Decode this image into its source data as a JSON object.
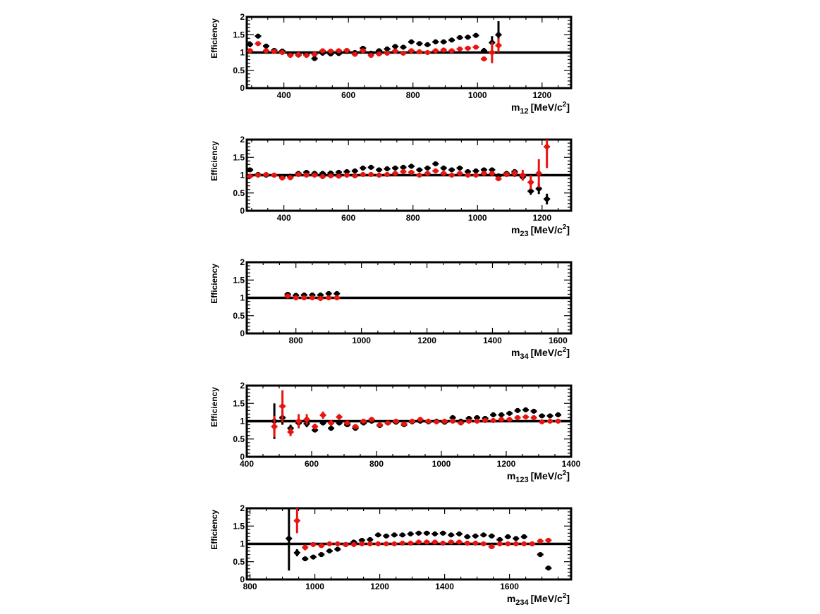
{
  "colors": {
    "series_black": "#000000",
    "series_red": "#e8140f",
    "frame": "#000000"
  },
  "chart_data": [
    {
      "type": "scatter",
      "ylabel": "Efficiency",
      "xlabel": {
        "main": "m",
        "sub": "12",
        "unit_pre": "[MeV/c",
        "sup": "2",
        "unit_post": "]"
      },
      "xlim": [
        285,
        1290
      ],
      "ylim": [
        0,
        2
      ],
      "xticks": [
        400,
        600,
        800,
        1000,
        1200
      ],
      "yticks": [
        "0",
        "0.5",
        "1",
        "1.5",
        "2"
      ],
      "reference_line": 1,
      "series": [
        {
          "color": "black",
          "x": [
            295,
            320,
            345,
            370,
            395,
            420,
            445,
            470,
            495,
            520,
            545,
            570,
            595,
            620,
            645,
            670,
            695,
            720,
            745,
            770,
            795,
            820,
            845,
            870,
            895,
            920,
            945,
            970,
            995,
            1020,
            1045,
            1065
          ],
          "y": [
            1.23,
            1.46,
            1.18,
            1.06,
            1.04,
            0.95,
            0.93,
            0.95,
            0.83,
            0.98,
            0.96,
            0.97,
            1.03,
            1.0,
            1.12,
            0.98,
            1.05,
            1.1,
            1.17,
            1.15,
            1.3,
            1.25,
            1.22,
            1.3,
            1.3,
            1.35,
            1.42,
            1.43,
            1.48,
            1.05,
            1.28,
            1.5
          ],
          "err": [
            0.08,
            0.06,
            0.05,
            0.04,
            0.04,
            0.04,
            0.04,
            0.04,
            0.05,
            0.04,
            0.04,
            0.04,
            0.04,
            0.04,
            0.04,
            0.04,
            0.04,
            0.04,
            0.04,
            0.04,
            0.04,
            0.04,
            0.04,
            0.04,
            0.04,
            0.04,
            0.04,
            0.04,
            0.06,
            0.08,
            0.18,
            0.38
          ]
        },
        {
          "color": "red",
          "x": [
            295,
            320,
            345,
            370,
            395,
            420,
            445,
            470,
            495,
            520,
            545,
            570,
            595,
            620,
            645,
            670,
            695,
            720,
            745,
            770,
            795,
            820,
            845,
            870,
            895,
            920,
            945,
            970,
            995,
            1020,
            1045,
            1065
          ],
          "y": [
            1.05,
            1.25,
            1.05,
            1.03,
            1.0,
            0.92,
            0.94,
            0.92,
            0.95,
            1.05,
            1.04,
            1.05,
            1.06,
            0.95,
            1.05,
            0.92,
            0.96,
            0.98,
            1.04,
            0.98,
            1.05,
            1.02,
            1.0,
            1.05,
            1.07,
            1.05,
            1.1,
            1.12,
            1.15,
            0.82,
            1.0,
            1.2
          ],
          "err": [
            0.07,
            0.06,
            0.05,
            0.04,
            0.04,
            0.04,
            0.04,
            0.04,
            0.04,
            0.04,
            0.04,
            0.04,
            0.04,
            0.04,
            0.04,
            0.04,
            0.04,
            0.04,
            0.04,
            0.04,
            0.04,
            0.04,
            0.04,
            0.04,
            0.04,
            0.04,
            0.04,
            0.04,
            0.05,
            0.05,
            0.3,
            0.2
          ]
        }
      ]
    },
    {
      "type": "scatter",
      "ylabel": "Efficiency",
      "xlabel": {
        "main": "m",
        "sub": "23",
        "unit_pre": "[MeV/c",
        "sup": "2",
        "unit_post": "]"
      },
      "xlim": [
        285,
        1290
      ],
      "ylim": [
        0,
        2
      ],
      "xticks": [
        400,
        600,
        800,
        1000,
        1200
      ],
      "yticks": [
        "0",
        "0.5",
        "1",
        "1.5",
        "2"
      ],
      "reference_line": 1,
      "series": [
        {
          "color": "black",
          "x": [
            295,
            320,
            345,
            370,
            395,
            420,
            445,
            470,
            495,
            520,
            545,
            570,
            595,
            620,
            645,
            670,
            695,
            720,
            745,
            770,
            795,
            820,
            845,
            870,
            895,
            920,
            945,
            970,
            995,
            1020,
            1045,
            1065,
            1090,
            1115,
            1140,
            1165,
            1190,
            1215
          ],
          "y": [
            1.15,
            1.02,
            1.0,
            1.0,
            0.95,
            0.97,
            1.05,
            1.08,
            1.05,
            1.05,
            1.06,
            1.08,
            1.1,
            1.12,
            1.2,
            1.22,
            1.15,
            1.18,
            1.2,
            1.22,
            1.25,
            1.15,
            1.2,
            1.32,
            1.2,
            1.15,
            1.2,
            1.1,
            1.12,
            1.15,
            1.15,
            0.98,
            1.05,
            1.1,
            0.95,
            0.55,
            0.62,
            0.33
          ],
          "err": [
            0.05,
            0.04,
            0.04,
            0.04,
            0.04,
            0.04,
            0.04,
            0.04,
            0.04,
            0.04,
            0.04,
            0.04,
            0.04,
            0.04,
            0.04,
            0.04,
            0.04,
            0.04,
            0.04,
            0.04,
            0.04,
            0.04,
            0.04,
            0.04,
            0.04,
            0.04,
            0.04,
            0.04,
            0.04,
            0.04,
            0.05,
            0.06,
            0.06,
            0.07,
            0.1,
            0.1,
            0.15,
            0.15
          ]
        },
        {
          "color": "red",
          "x": [
            295,
            320,
            345,
            370,
            395,
            420,
            445,
            470,
            495,
            520,
            545,
            570,
            595,
            620,
            645,
            670,
            695,
            720,
            745,
            770,
            795,
            820,
            845,
            870,
            895,
            920,
            945,
            970,
            995,
            1020,
            1045,
            1065,
            1090,
            1115,
            1140,
            1165,
            1190,
            1215
          ],
          "y": [
            0.97,
            1.0,
            1.02,
            1.0,
            0.92,
            0.93,
            1.02,
            1.0,
            1.0,
            0.96,
            0.98,
            0.97,
            1.0,
            0.98,
            1.02,
            1.02,
            1.0,
            1.02,
            1.05,
            1.1,
            1.08,
            1.0,
            1.05,
            1.12,
            1.05,
            1.0,
            1.05,
            1.0,
            1.0,
            1.05,
            1.05,
            0.9,
            1.02,
            1.05,
            1.0,
            0.8,
            1.05,
            1.8
          ],
          "err": [
            0.05,
            0.04,
            0.04,
            0.04,
            0.04,
            0.04,
            0.04,
            0.04,
            0.04,
            0.04,
            0.04,
            0.04,
            0.04,
            0.04,
            0.04,
            0.04,
            0.04,
            0.04,
            0.04,
            0.04,
            0.04,
            0.04,
            0.04,
            0.04,
            0.04,
            0.04,
            0.04,
            0.04,
            0.04,
            0.04,
            0.05,
            0.06,
            0.07,
            0.1,
            0.15,
            0.2,
            0.4,
            0.6
          ]
        }
      ]
    },
    {
      "type": "scatter",
      "ylabel": "Efficiency",
      "xlabel": {
        "main": "m",
        "sub": "34",
        "unit_pre": "[MeV/c",
        "sup": "2",
        "unit_post": "]"
      },
      "xlim": [
        650,
        1640
      ],
      "ylim": [
        0,
        2
      ],
      "xticks": [
        800,
        1000,
        1200,
        1400,
        1600
      ],
      "yticks": [
        "0",
        "0.5",
        "1",
        "1.5",
        "2"
      ],
      "reference_line": 1,
      "series": [
        {
          "color": "black",
          "x": [
            775,
            800,
            825,
            850,
            875,
            900,
            925
          ],
          "y": [
            1.1,
            1.07,
            1.08,
            1.08,
            1.08,
            1.12,
            1.12
          ],
          "err": [
            0.03,
            0.03,
            0.03,
            0.03,
            0.03,
            0.03,
            0.03
          ]
        },
        {
          "color": "red",
          "x": [
            775,
            800,
            825,
            850,
            875,
            900,
            925
          ],
          "y": [
            1.05,
            1.0,
            1.0,
            1.0,
            0.98,
            1.0,
            1.0
          ],
          "err": [
            0.03,
            0.03,
            0.03,
            0.03,
            0.03,
            0.03,
            0.03
          ]
        }
      ]
    },
    {
      "type": "scatter",
      "ylabel": "Efficiency",
      "xlabel": {
        "main": "m",
        "sub": "123",
        "unit_pre": "[MeV/c",
        "sup": "2",
        "unit_post": "]"
      },
      "xlim": [
        400,
        1400
      ],
      "ylim": [
        0,
        2
      ],
      "xticks": [
        400,
        600,
        800,
        1000,
        1200,
        1400
      ],
      "yticks": [
        "0",
        "0.5",
        "1",
        "1.5",
        "2"
      ],
      "reference_line": 1,
      "series": [
        {
          "color": "black",
          "x": [
            485,
            510,
            535,
            560,
            585,
            610,
            635,
            660,
            685,
            710,
            735,
            760,
            785,
            810,
            835,
            860,
            885,
            910,
            935,
            960,
            985,
            1010,
            1035,
            1060,
            1085,
            1110,
            1135,
            1160,
            1185,
            1210,
            1235,
            1260,
            1285,
            1310,
            1335,
            1360
          ],
          "y": [
            1.0,
            1.1,
            0.8,
            0.95,
            0.93,
            0.75,
            0.95,
            0.8,
            0.95,
            0.9,
            0.8,
            0.95,
            1.0,
            0.88,
            0.95,
            0.97,
            0.9,
            0.98,
            1.0,
            0.98,
            1.0,
            0.97,
            1.1,
            1.0,
            1.08,
            1.1,
            1.08,
            1.18,
            1.18,
            1.22,
            1.3,
            1.32,
            1.28,
            1.15,
            1.15,
            1.18
          ],
          "err": [
            0.5,
            0.2,
            0.1,
            0.1,
            0.1,
            0.06,
            0.06,
            0.06,
            0.05,
            0.05,
            0.05,
            0.04,
            0.04,
            0.04,
            0.04,
            0.04,
            0.04,
            0.04,
            0.04,
            0.04,
            0.04,
            0.04,
            0.04,
            0.04,
            0.04,
            0.04,
            0.04,
            0.04,
            0.04,
            0.04,
            0.04,
            0.04,
            0.04,
            0.04,
            0.04,
            0.04
          ]
        },
        {
          "color": "red",
          "x": [
            485,
            510,
            535,
            560,
            585,
            610,
            635,
            660,
            685,
            710,
            735,
            760,
            785,
            810,
            835,
            860,
            885,
            910,
            935,
            960,
            985,
            1010,
            1035,
            1060,
            1085,
            1110,
            1135,
            1160,
            1185,
            1210,
            1235,
            1260,
            1285,
            1310,
            1335,
            1360
          ],
          "y": [
            0.85,
            1.42,
            0.7,
            1.0,
            1.05,
            0.85,
            1.17,
            0.95,
            1.12,
            0.95,
            0.85,
            1.0,
            1.05,
            0.9,
            0.95,
            1.0,
            0.92,
            1.0,
            1.05,
            1.0,
            0.98,
            1.0,
            1.0,
            0.95,
            1.0,
            1.0,
            1.02,
            1.02,
            1.05,
            1.05,
            1.1,
            1.12,
            1.1,
            0.98,
            1.0,
            1.0
          ],
          "err": [
            0.3,
            0.45,
            0.12,
            0.2,
            0.15,
            0.08,
            0.1,
            0.08,
            0.08,
            0.06,
            0.05,
            0.05,
            0.05,
            0.04,
            0.04,
            0.04,
            0.04,
            0.04,
            0.04,
            0.04,
            0.04,
            0.04,
            0.04,
            0.04,
            0.04,
            0.04,
            0.04,
            0.04,
            0.04,
            0.04,
            0.04,
            0.04,
            0.04,
            0.04,
            0.04,
            0.04
          ]
        }
      ]
    },
    {
      "type": "scatter",
      "ylabel": "Efficiency",
      "xlabel": {
        "main": "m",
        "sub": "234",
        "unit_pre": "[MeV/c",
        "sup": "2",
        "unit_post": "]"
      },
      "xlim": [
        790,
        1790
      ],
      "ylim": [
        0,
        2
      ],
      "xticks": [
        800,
        1000,
        1200,
        1400,
        1600
      ],
      "yticks": [
        "0",
        "0.5",
        "1",
        "1.5",
        "2"
      ],
      "reference_line": 1,
      "series": [
        {
          "color": "black",
          "x": [
            920,
            945,
            970,
            995,
            1020,
            1045,
            1070,
            1095,
            1120,
            1145,
            1170,
            1195,
            1220,
            1245,
            1270,
            1295,
            1320,
            1345,
            1370,
            1395,
            1420,
            1445,
            1470,
            1495,
            1520,
            1545,
            1570,
            1595,
            1620,
            1645,
            1670,
            1695,
            1720
          ],
          "y": [
            1.15,
            0.75,
            0.58,
            0.63,
            0.7,
            0.8,
            0.85,
            0.98,
            1.05,
            1.1,
            1.12,
            1.25,
            1.22,
            1.25,
            1.25,
            1.28,
            1.3,
            1.3,
            1.28,
            1.3,
            1.25,
            1.28,
            1.2,
            1.22,
            1.25,
            1.22,
            1.12,
            1.2,
            1.15,
            1.2,
            1.0,
            0.7,
            0.32
          ],
          "err": [
            0.9,
            0.1,
            0.05,
            0.04,
            0.04,
            0.04,
            0.04,
            0.04,
            0.04,
            0.04,
            0.04,
            0.04,
            0.04,
            0.04,
            0.04,
            0.04,
            0.04,
            0.04,
            0.04,
            0.04,
            0.04,
            0.04,
            0.04,
            0.04,
            0.04,
            0.04,
            0.04,
            0.04,
            0.04,
            0.04,
            0.04,
            0.04,
            0.04
          ]
        },
        {
          "color": "red",
          "x": [
            945,
            970,
            995,
            1020,
            1045,
            1070,
            1095,
            1120,
            1145,
            1170,
            1195,
            1220,
            1245,
            1270,
            1295,
            1320,
            1345,
            1370,
            1395,
            1420,
            1445,
            1470,
            1495,
            1520,
            1545,
            1570,
            1595,
            1620,
            1645,
            1670,
            1695,
            1720
          ],
          "y": [
            1.65,
            0.9,
            0.98,
            0.95,
            1.0,
            1.0,
            0.98,
            0.98,
            1.0,
            1.0,
            1.0,
            1.0,
            1.0,
            1.02,
            1.02,
            1.05,
            1.05,
            1.05,
            1.02,
            1.05,
            1.05,
            1.02,
            1.02,
            1.0,
            0.92,
            1.0,
            1.0,
            1.0,
            1.0,
            1.0,
            1.08,
            1.1
          ],
          "err": [
            0.35,
            0.08,
            0.05,
            0.04,
            0.04,
            0.04,
            0.04,
            0.04,
            0.04,
            0.04,
            0.04,
            0.04,
            0.04,
            0.04,
            0.04,
            0.04,
            0.04,
            0.04,
            0.04,
            0.04,
            0.04,
            0.04,
            0.04,
            0.04,
            0.04,
            0.04,
            0.04,
            0.04,
            0.04,
            0.04,
            0.05,
            0.06
          ]
        }
      ]
    }
  ]
}
